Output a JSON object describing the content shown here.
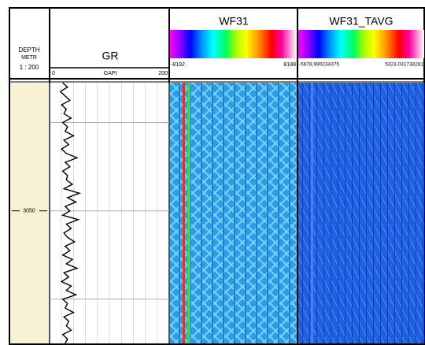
{
  "depth_track": {
    "title": "DEPTH",
    "unit": "METR",
    "scale": "1 : 200"
  },
  "chart_data": {
    "type": "line",
    "title": "GR",
    "x_label": "GAPI",
    "color": "#000000",
    "grid": true,
    "xlim": [
      0,
      200
    ],
    "xticks": [
      0,
      {
        "value": 20,
        "label": null
      },
      {
        "value": 40,
        "label": null
      },
      {
        "value": 60,
        "label": null
      },
      {
        "value": 80,
        "label": null
      },
      {
        "value": 100,
        "label": null
      },
      {
        "value": 120,
        "label": null
      },
      {
        "value": 140,
        "label": null
      },
      {
        "value": 160,
        "label": null
      },
      {
        "value": 180,
        "label": null
      },
      200
    ],
    "ylim": [
      3042.75,
      3057.5
    ],
    "yticks": [
      {
        "value": 3045,
        "label": null
      },
      3050,
      {
        "value": 3055,
        "label": null
      }
    ],
    "depth": [
      3042.75,
      3043,
      3043.25,
      3043.5,
      3043.75,
      3044,
      3044.25,
      3044.5,
      3044.75,
      3045,
      3045.25,
      3045.5,
      3045.75,
      3046,
      3046.25,
      3046.5,
      3046.75,
      3047,
      3047.25,
      3047.5,
      3047.75,
      3048,
      3048.25,
      3048.5,
      3048.75,
      3049,
      3049.25,
      3049.5,
      3049.75,
      3050,
      3050.25,
      3050.5,
      3050.75,
      3051,
      3051.25,
      3051.5,
      3051.75,
      3052,
      3052.25,
      3052.5,
      3052.75,
      3053,
      3053.25,
      3053.5,
      3053.75,
      3054,
      3054.25,
      3054.5,
      3054.75,
      3055,
      3055.25,
      3055.5,
      3055.75,
      3056,
      3056.25,
      3056.5,
      3056.75,
      3057,
      3057.25,
      3057.5
    ],
    "values": [
      22,
      30,
      18,
      26,
      34,
      20,
      28,
      24,
      36,
      22,
      30,
      26,
      40,
      24,
      32,
      20,
      28,
      46,
      26,
      34,
      22,
      30,
      28,
      38,
      24,
      50,
      30,
      44,
      26,
      34,
      22,
      48,
      28,
      36,
      24,
      30,
      42,
      26,
      34,
      22,
      38,
      28,
      46,
      24,
      32,
      20,
      36,
      28,
      44,
      22,
      30,
      26,
      40,
      24,
      32,
      28,
      36,
      22,
      30,
      26
    ]
  },
  "image_tracks": [
    {
      "title": "WF31",
      "min_label": "-8192",
      "max_label": "8188"
    },
    {
      "title": "WF31_TAVG",
      "min_label": "-5678,990234375",
      "max_label": "5323,031738281"
    }
  ]
}
